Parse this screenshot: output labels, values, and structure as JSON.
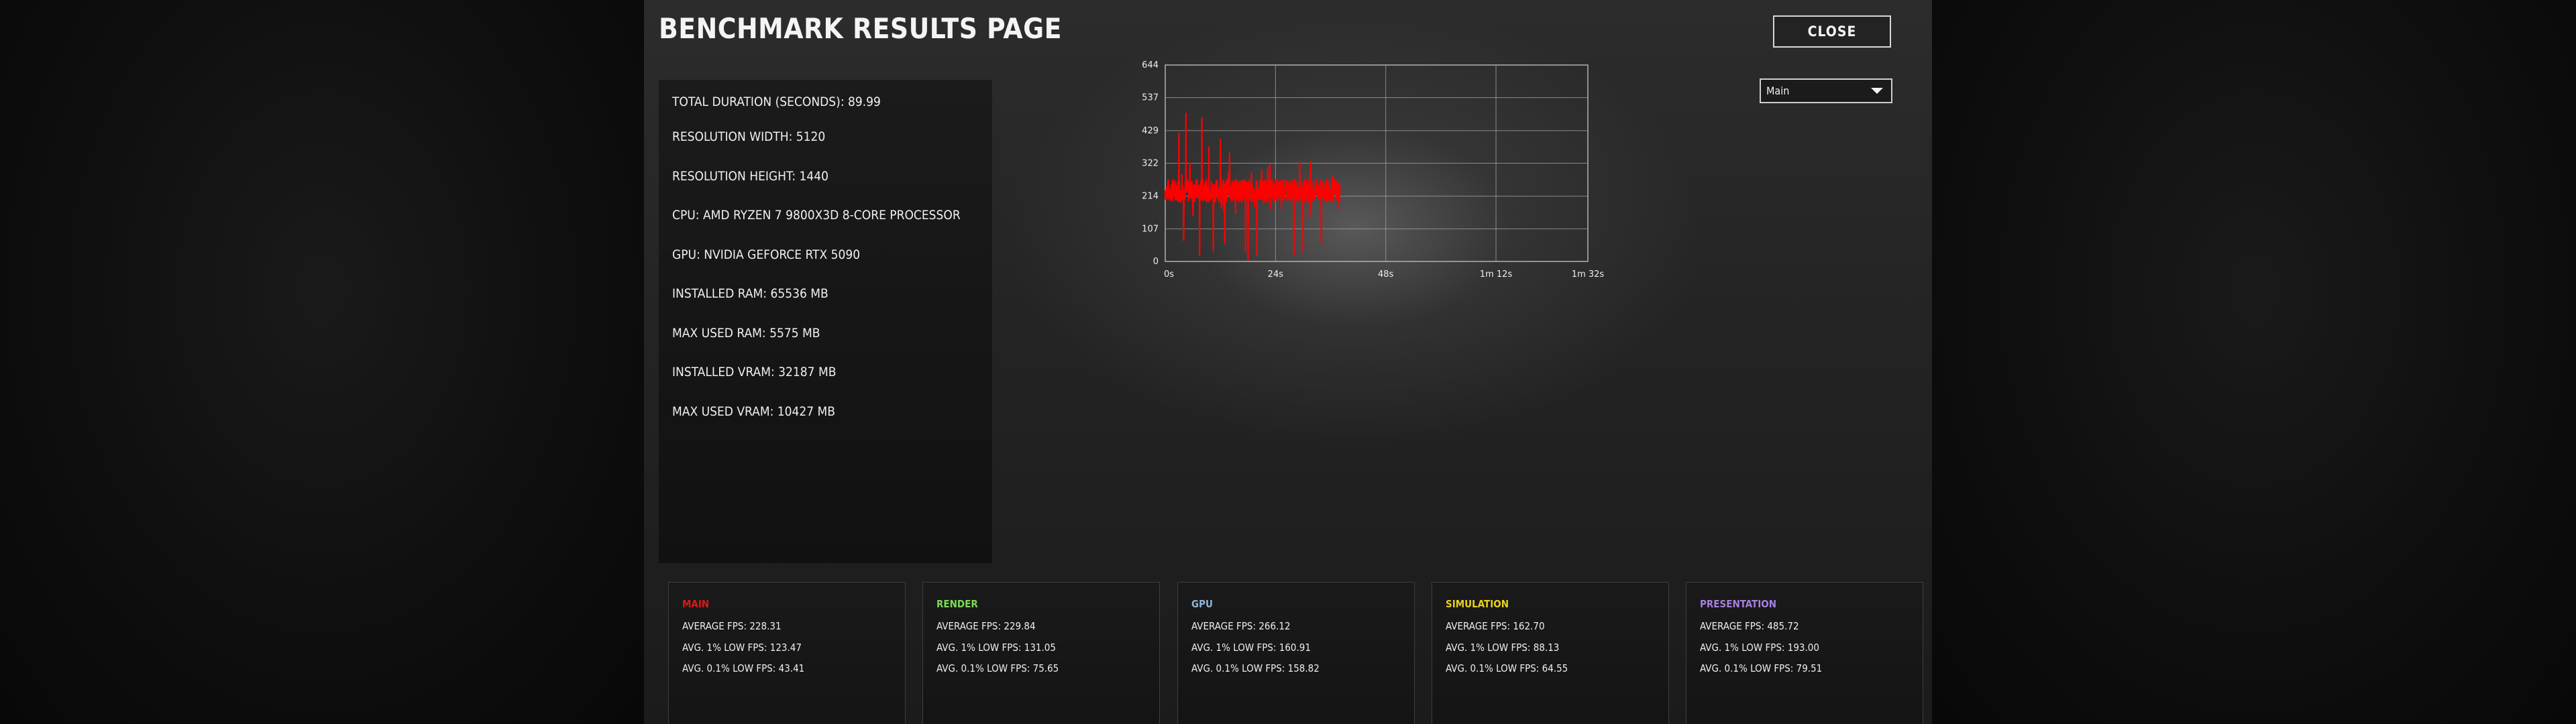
{
  "page": {
    "title": "BENCHMARK RESULTS PAGE",
    "close_label": "CLOSE"
  },
  "series_select": {
    "value": "Main"
  },
  "info": {
    "lines": [
      "TOTAL DURATION (SECONDS): 89.99",
      "RESOLUTION WIDTH: 5120",
      "RESOLUTION HEIGHT: 1440",
      "CPU: AMD RYZEN 7 9800X3D 8-CORE PROCESSOR",
      "GPU: NVIDIA GEFORCE RTX 5090",
      "INSTALLED RAM: 65536 MB",
      "MAX USED RAM: 5575 MB",
      "INSTALLED VRAM: 32187 MB",
      "MAX USED VRAM: 10427 MB"
    ]
  },
  "chart_data": {
    "type": "line",
    "title": "",
    "xlabel": "",
    "ylabel": "",
    "x_unit": "seconds",
    "xlim": [
      0,
      92
    ],
    "ylim": [
      0,
      644
    ],
    "y_ticks": [
      0,
      107,
      214,
      322,
      429,
      537,
      644
    ],
    "x_ticks": [
      {
        "value": 0,
        "label": "0s"
      },
      {
        "value": 24,
        "label": "24s"
      },
      {
        "value": 48,
        "label": "48s"
      },
      {
        "value": 72,
        "label": "1m 12s"
      },
      {
        "value": 92,
        "label": "1m 32s"
      }
    ],
    "grid": true,
    "series": [
      {
        "color": "#ff0000",
        "x_start": 0,
        "x_end": 38,
        "typical_low": 195,
        "typical_high": 270,
        "min": 0,
        "max": 485,
        "spike_highs": [
          {
            "x": 3,
            "y": 420
          },
          {
            "x": 4.5,
            "y": 485
          },
          {
            "x": 8,
            "y": 472
          },
          {
            "x": 9.5,
            "y": 375
          },
          {
            "x": 12,
            "y": 400
          },
          {
            "x": 14,
            "y": 355
          },
          {
            "x": 18,
            "y": 345
          },
          {
            "x": 21,
            "y": 300
          }
        ],
        "spike_lows": [
          {
            "x": 4,
            "y": 70
          },
          {
            "x": 7.5,
            "y": 20
          },
          {
            "x": 10.5,
            "y": 35
          },
          {
            "x": 13,
            "y": 60
          },
          {
            "x": 17.5,
            "y": 30
          },
          {
            "x": 18,
            "y": 5
          },
          {
            "x": 20,
            "y": 20
          },
          {
            "x": 28,
            "y": 20
          },
          {
            "x": 30,
            "y": 30
          },
          {
            "x": 34,
            "y": 60
          }
        ]
      }
    ]
  },
  "stats": [
    {
      "name": "MAIN",
      "color": "#e01616",
      "avg": "AVERAGE FPS: 228.31",
      "low1": "AVG. 1% LOW FPS: 123.47",
      "low01": "AVG. 0.1% LOW FPS: 43.41"
    },
    {
      "name": "RENDER",
      "color": "#7ed957",
      "avg": "AVERAGE FPS: 229.84",
      "low1": "AVG. 1% LOW FPS: 131.05",
      "low01": "AVG. 0.1% LOW FPS: 75.65"
    },
    {
      "name": "GPU",
      "color": "#8fb4d4",
      "avg": "AVERAGE FPS: 266.12",
      "low1": "AVG. 1% LOW FPS: 160.91",
      "low01": "AVG. 0.1% LOW FPS: 158.82"
    },
    {
      "name": "SIMULATION",
      "color": "#e8d21d",
      "avg": "AVERAGE FPS: 162.70",
      "low1": "AVG. 1% LOW FPS: 88.13",
      "low01": "AVG. 0.1% LOW FPS: 64.55"
    },
    {
      "name": "PRESENTATION",
      "color": "#a57fe0",
      "avg": "AVERAGE FPS: 485.72",
      "low1": "AVG. 1% LOW FPS: 193.00",
      "low01": "AVG. 0.1% LOW FPS: 79.51"
    }
  ]
}
